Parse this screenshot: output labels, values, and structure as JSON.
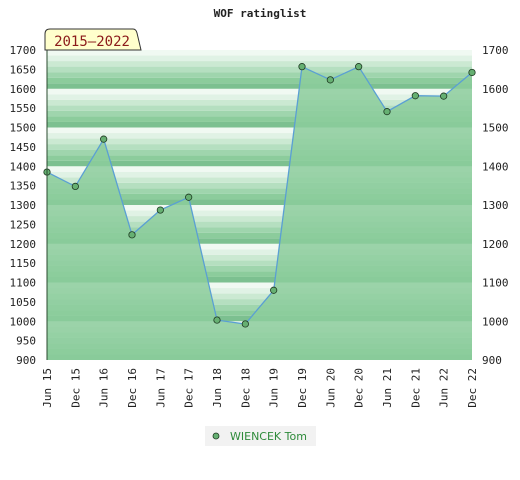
{
  "chart_data": {
    "type": "area",
    "title": "WOF ratinglist",
    "badge": "2015–2022",
    "x_labels": [
      "Jun 15",
      "Dec 15",
      "Jun 16",
      "Dec 16",
      "Jun 17",
      "Dec 17",
      "Jun 18",
      "Dec 18",
      "Jun 19",
      "Dec 19",
      "Jun 20",
      "Dec 20",
      "Jun 21",
      "Dec 21",
      "Jun 22",
      "Dec 22"
    ],
    "ylim": [
      900,
      1700
    ],
    "y_ticks_left": [
      900,
      950,
      1000,
      1050,
      1100,
      1150,
      1200,
      1250,
      1300,
      1350,
      1400,
      1450,
      1500,
      1550,
      1600,
      1650,
      1700
    ],
    "y_ticks_right": [
      900,
      1000,
      1100,
      1200,
      1300,
      1400,
      1500,
      1600,
      1700
    ],
    "series": [
      {
        "name": "WIENCEK Tom",
        "values": [
          1385,
          1348,
          1470,
          1223,
          1287,
          1320,
          1003,
          993,
          1080,
          1657,
          1623,
          1657,
          1541,
          1582,
          1581,
          1642
        ]
      }
    ],
    "colors": {
      "area_fill": "#8ccc9c",
      "line": "#5a9fd4",
      "marker_fill": "#66b072",
      "marker_stroke": "#1e3a22",
      "legend_text": "#2e8b3a",
      "badge_fill": "#ffffcc",
      "badge_text": "#8b1a1a"
    },
    "legend_position": "bottom-center"
  }
}
